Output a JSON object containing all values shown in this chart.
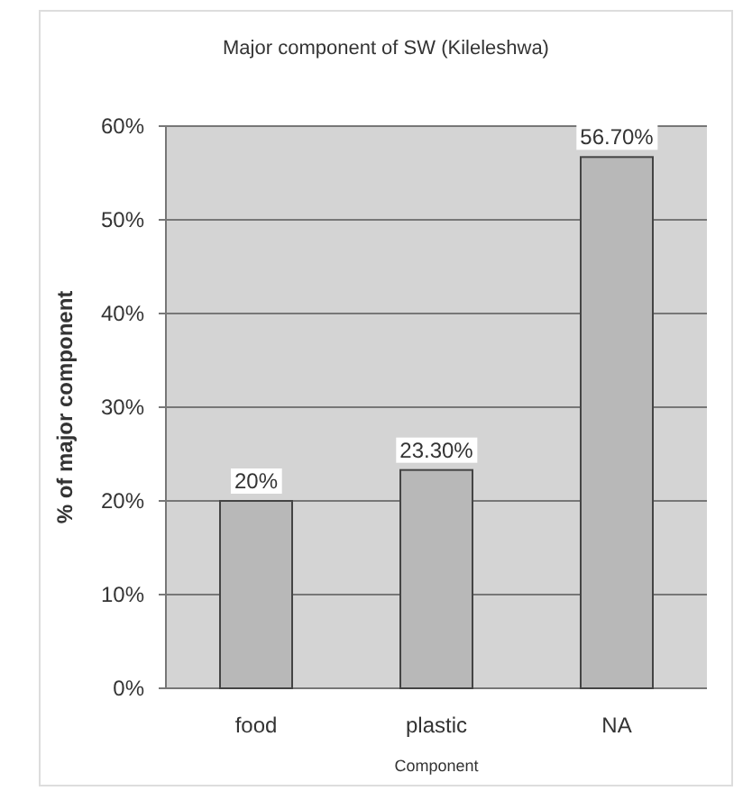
{
  "chart_data": {
    "type": "bar",
    "title": "Major component of SW (Kileleshwa)",
    "xlabel": "Component",
    "ylabel": "% of major component",
    "categories": [
      "food",
      "plastic",
      "NA"
    ],
    "values": [
      20,
      23.3,
      56.7
    ],
    "color": "#b8b8b8",
    "value_labels": [
      "20%",
      "23.30%",
      "56.70%"
    ],
    "ylim": [
      0,
      60
    ],
    "yticks": [
      {
        "value": 0,
        "label": "0%"
      },
      {
        "value": 10,
        "label": "10%"
      },
      {
        "value": 20,
        "label": "20%"
      },
      {
        "value": 30,
        "label": "30%"
      },
      {
        "value": 40,
        "label": "40%"
      },
      {
        "value": 50,
        "label": "50%"
      },
      {
        "value": 60,
        "label": "60%"
      }
    ],
    "grid": "y"
  }
}
